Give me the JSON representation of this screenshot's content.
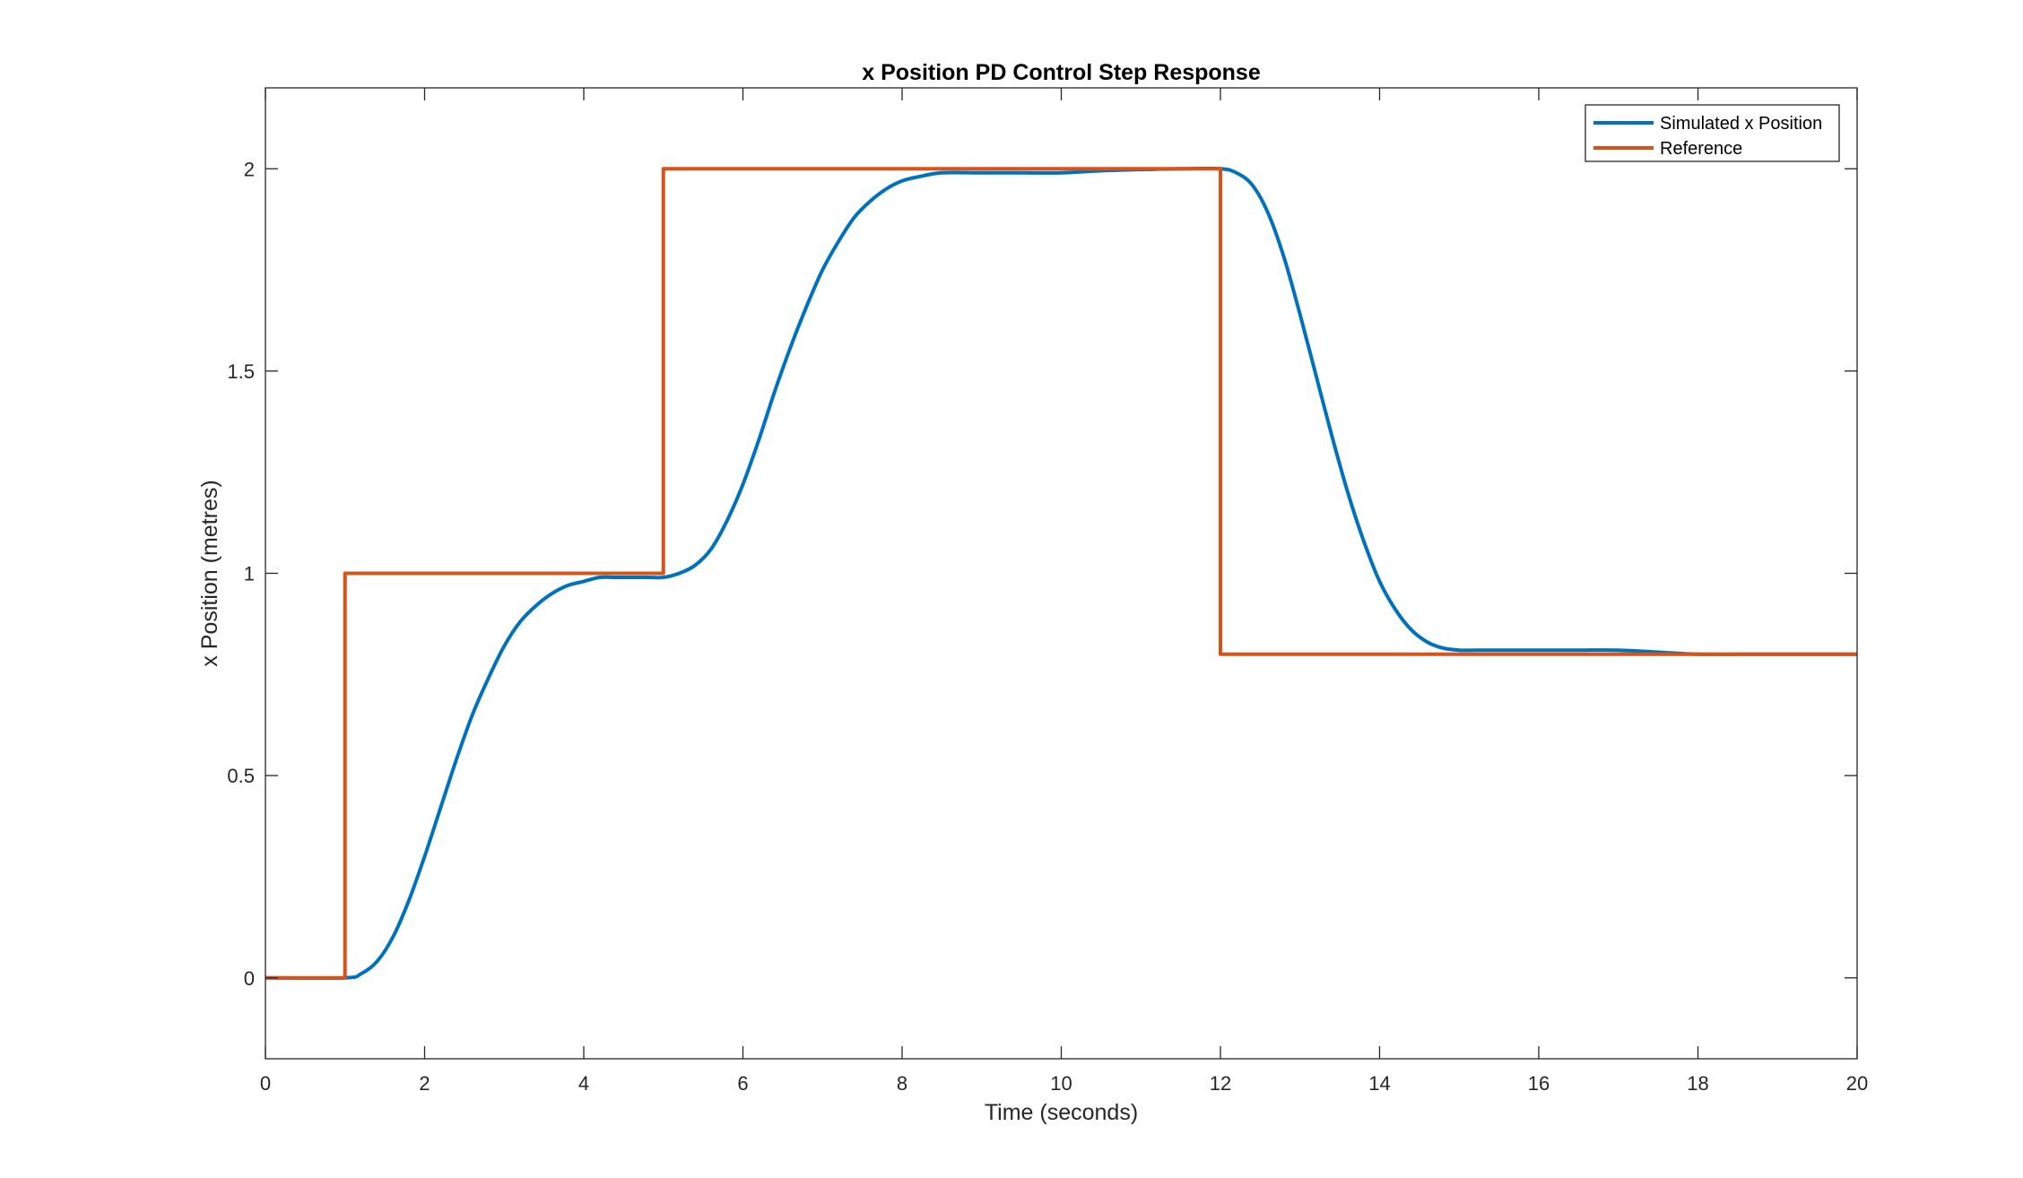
{
  "chart_data": {
    "type": "line",
    "title": "x Position PD Control Step Response",
    "xlabel": "Time (seconds)",
    "ylabel": "x Position (metres)",
    "xlim": [
      0,
      20
    ],
    "ylim": [
      -0.2,
      2.2
    ],
    "xticks": [
      0,
      2,
      4,
      6,
      8,
      10,
      12,
      14,
      16,
      18,
      20
    ],
    "yticks": [
      0,
      0.5,
      1,
      1.5,
      2
    ],
    "xtick_labels": [
      "0",
      "2",
      "4",
      "6",
      "8",
      "10",
      "12",
      "14",
      "16",
      "18",
      "20"
    ],
    "ytick_labels": [
      "0",
      "0.5",
      "1",
      "1.5",
      "2"
    ],
    "grid": false,
    "legend_position": "top-right",
    "series": [
      {
        "name": "Simulated x Position",
        "color": "#0072BD",
        "x": [
          0,
          1,
          1.2,
          1.4,
          1.6,
          1.8,
          2,
          2.2,
          2.4,
          2.6,
          2.8,
          3,
          3.2,
          3.4,
          3.6,
          3.8,
          4,
          4.2,
          4.4,
          4.6,
          4.8,
          5,
          5.2,
          5.4,
          5.6,
          5.8,
          6,
          6.2,
          6.4,
          6.6,
          6.8,
          7,
          7.2,
          7.4,
          7.6,
          7.8,
          8,
          8.2,
          8.5,
          9,
          9.5,
          10,
          10.5,
          11,
          11.5,
          12,
          12.2,
          12.4,
          12.6,
          12.8,
          13,
          13.2,
          13.4,
          13.6,
          13.8,
          14,
          14.2,
          14.4,
          14.6,
          14.8,
          15,
          15.2,
          15.4,
          15.6,
          16,
          16.5,
          17,
          17.5,
          18,
          18.5,
          19,
          20
        ],
        "y": [
          0,
          0,
          0.01,
          0.04,
          0.1,
          0.19,
          0.3,
          0.42,
          0.54,
          0.65,
          0.74,
          0.82,
          0.88,
          0.92,
          0.95,
          0.97,
          0.98,
          0.99,
          0.99,
          0.99,
          0.99,
          0.99,
          1.0,
          1.02,
          1.06,
          1.13,
          1.22,
          1.33,
          1.45,
          1.56,
          1.66,
          1.75,
          1.82,
          1.88,
          1.92,
          1.95,
          1.97,
          1.98,
          1.99,
          1.99,
          1.99,
          1.99,
          1.995,
          1.998,
          2.0,
          2.0,
          1.99,
          1.96,
          1.89,
          1.78,
          1.64,
          1.49,
          1.34,
          1.2,
          1.08,
          0.98,
          0.91,
          0.86,
          0.83,
          0.815,
          0.81,
          0.81,
          0.81,
          0.81,
          0.81,
          0.81,
          0.81,
          0.805,
          0.8,
          0.8,
          0.8,
          0.8
        ]
      },
      {
        "name": "Reference",
        "color": "#D95319",
        "x": [
          0,
          1,
          1,
          5,
          5,
          12,
          12,
          20
        ],
        "y": [
          0,
          0,
          1,
          1,
          2,
          2,
          0.8,
          0.8
        ]
      }
    ]
  }
}
